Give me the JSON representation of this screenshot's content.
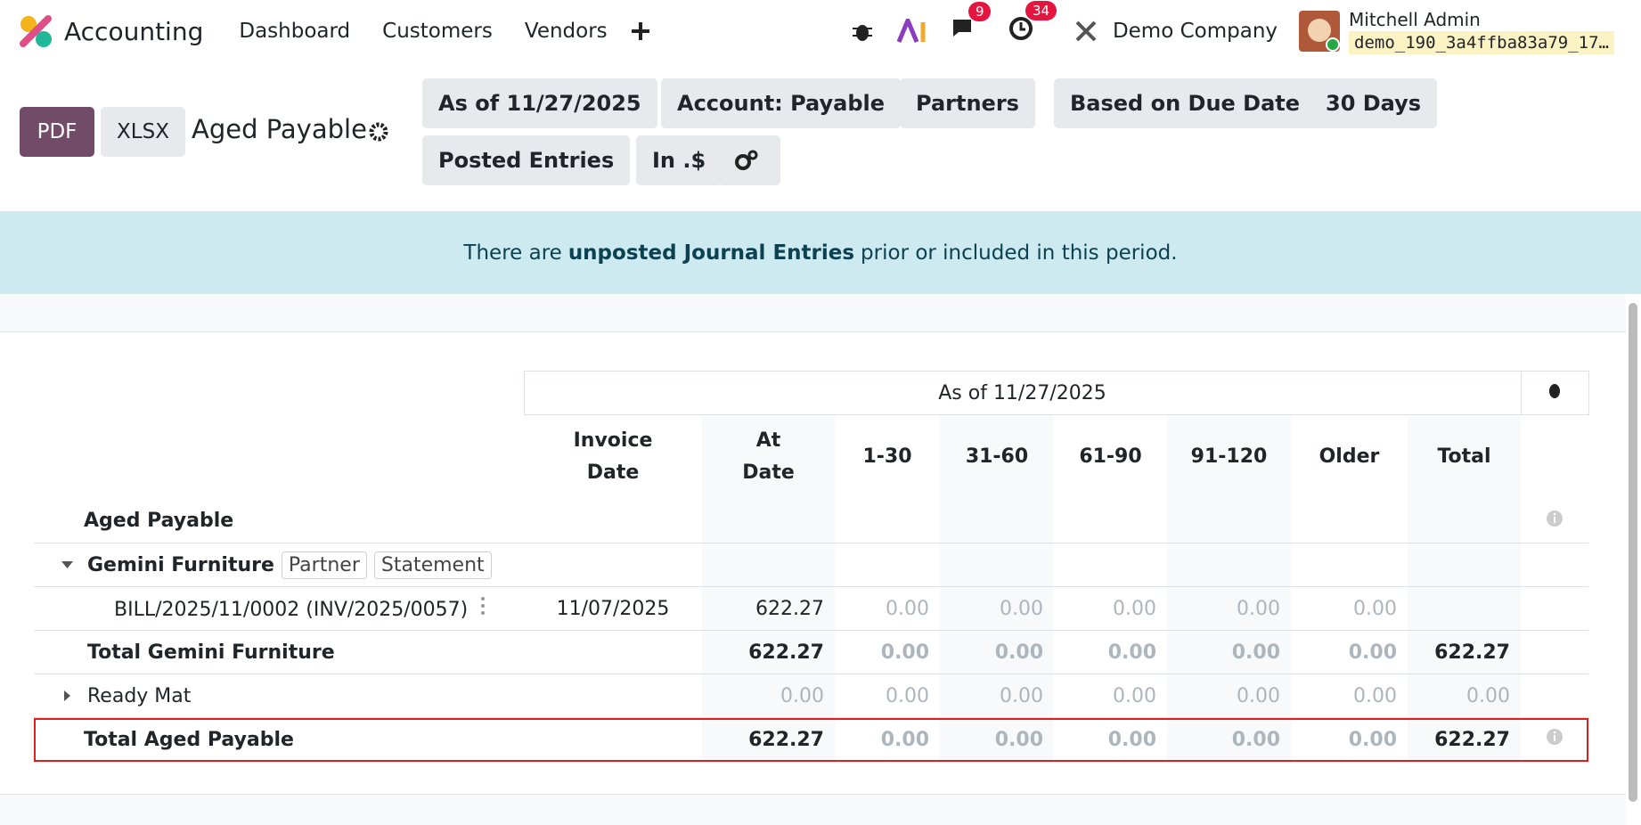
{
  "navbar": {
    "app": "Accounting",
    "menu": [
      "Dashboard",
      "Customers",
      "Vendors"
    ],
    "messages_badge": "9",
    "activities_badge": "34",
    "company": "Demo Company",
    "user": "Mitchell Admin",
    "database": "demo_190_3a4ffba83a79_17…"
  },
  "control_panel": {
    "buttons": [
      "PDF",
      "XLSX"
    ],
    "title": "Aged Payable",
    "filters": [
      "As of 11/27/2025",
      "Account: Payable",
      "Partners",
      "Based on Due Date",
      "30 Days",
      "Posted Entries",
      "In .$"
    ]
  },
  "alert": {
    "before": "There are",
    "strong": "unposted Journal Entries",
    "after": "prior or included in this period."
  },
  "table": {
    "period": "As of 11/27/2025",
    "columns": [
      "Invoice Date",
      "At Date",
      "1-30",
      "31-60",
      "61-90",
      "91-120",
      "Older",
      "Total"
    ],
    "rows": [
      {
        "label": "Aged Payable",
        "kind": "heading"
      },
      {
        "label": "Gemini Furniture",
        "kind": "partner",
        "tags": [
          "Partner",
          "Statement"
        ]
      },
      {
        "label": "BILL/2025/11/0002 (INV/2025/0057)",
        "kind": "line",
        "cells": [
          "11/07/2025",
          "622.27",
          "0.00",
          "0.00",
          "0.00",
          "0.00",
          "0.00",
          null
        ]
      },
      {
        "label": "Total Gemini Furniture",
        "kind": "total",
        "cells": [
          null,
          "622.27",
          "0.00",
          "0.00",
          "0.00",
          "0.00",
          "0.00",
          "622.27"
        ]
      },
      {
        "label": "Ready Mat",
        "kind": "collapsed",
        "cells": [
          null,
          "0.00",
          "0.00",
          "0.00",
          "0.00",
          "0.00",
          "0.00",
          "0.00"
        ]
      },
      {
        "label": "Total Aged Payable",
        "kind": "grand",
        "cells": [
          null,
          "622.27",
          "0.00",
          "0.00",
          "0.00",
          "0.00",
          "0.00",
          "622.27"
        ]
      }
    ]
  }
}
